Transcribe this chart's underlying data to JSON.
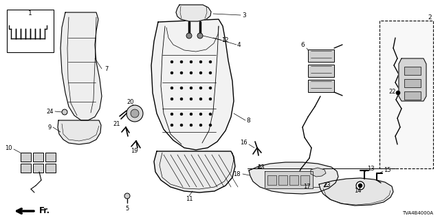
{
  "bg_color": "#ffffff",
  "fig_width": 6.4,
  "fig_height": 3.2,
  "dpi": 100,
  "diagram_code": "TVA4B4000A",
  "lw_main": 1.0,
  "lw_thin": 0.5,
  "lw_thick": 1.4
}
